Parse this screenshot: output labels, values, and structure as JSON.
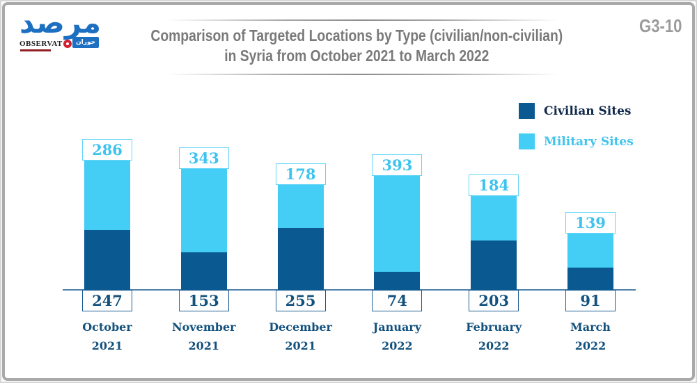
{
  "page_code": "G3-10",
  "logo": {
    "arabic_title": "مرصد",
    "observatory_left": "OBSERVAT",
    "observatory_right": "RY",
    "badge_text": "حوران"
  },
  "header": {
    "title_line1": "Comparison of Targeted Locations by Type (civilian/non-civilian)",
    "title_line2": "in Syria from October 2021 to March 2022"
  },
  "legend": {
    "items": [
      {
        "label": "Civilian Sites",
        "color": "#0a5a91",
        "text_color": "#10294b"
      },
      {
        "label": "Military Sites",
        "color": "#44cdf5",
        "text_color": "#41c4ee"
      }
    ]
  },
  "chart_data": {
    "type": "bar",
    "stacked": true,
    "orientation": "vertical",
    "title": "Comparison of Targeted Locations by Type (civilian/non-civilian) in Syria from October 2021 to March 2022",
    "categories": [
      "October 2021",
      "November 2021",
      "December 2021",
      "January 2022",
      "February 2022",
      "March 2022"
    ],
    "series": [
      {
        "name": "Civilian Sites",
        "color": "#0a5a91",
        "values": [
          247,
          153,
          255,
          74,
          203,
          91
        ],
        "value_label_position": "box-below-axis",
        "value_text_color": "#14527e"
      },
      {
        "name": "Military Sites",
        "color": "#44cdf5",
        "values": [
          286,
          343,
          178,
          393,
          184,
          139
        ],
        "value_label_position": "box-above-bar",
        "value_text_color": "#3ec3ee"
      }
    ],
    "legend_position": "top-right",
    "grid": false,
    "baseline_color": "#4f81ad"
  }
}
